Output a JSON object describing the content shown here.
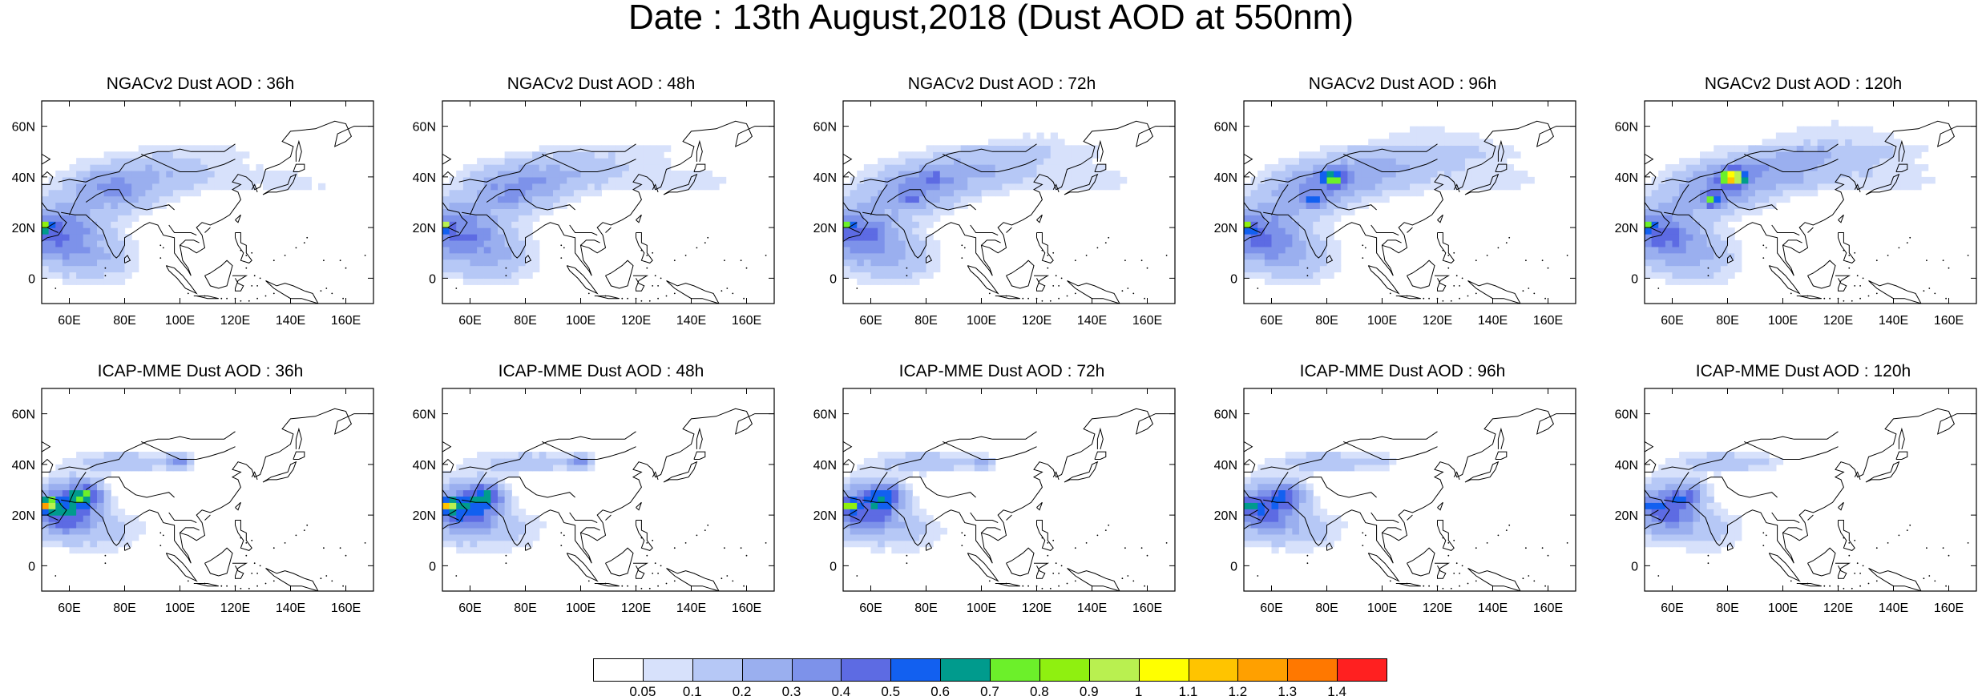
{
  "title": "Date : 13th August,2018 (Dust AOD at 550nm)",
  "colors": {
    "coast": "#000000",
    "frame": "#000000"
  },
  "map": {
    "lon_range": [
      50,
      170
    ],
    "lat_range": [
      -10,
      70
    ],
    "lon_ticks": [
      "60E",
      "80E",
      "100E",
      "120E",
      "140E",
      "160E"
    ],
    "lat_ticks": [
      "0",
      "20N",
      "40N",
      "60N"
    ]
  },
  "colorbar": {
    "colors": [
      "#ffffff",
      "#d7e1fb",
      "#b6c8f6",
      "#9aafef",
      "#7d92ea",
      "#5d6be3",
      "#1260f0",
      "#009b8d",
      "#6cf02a",
      "#8ff010",
      "#b9f050",
      "#ffff00",
      "#ffc400",
      "#ffa000",
      "#ff7800",
      "#ff2020"
    ],
    "labels": [
      "0.05",
      "0.1",
      "0.2",
      "0.3",
      "0.4",
      "0.5",
      "0.6",
      "0.7",
      "0.8",
      "0.9",
      "1",
      "1.1",
      "1.2",
      "1.3",
      "1.4"
    ]
  },
  "panels": [
    {
      "title": "NGACv2 Dust AOD : 36h",
      "model": "ngac",
      "hour": 36
    },
    {
      "title": "NGACv2 Dust AOD : 48h",
      "model": "ngac",
      "hour": 48
    },
    {
      "title": "NGACv2 Dust AOD : 72h",
      "model": "ngac",
      "hour": 72
    },
    {
      "title": "NGACv2 Dust AOD : 96h",
      "model": "ngac",
      "hour": 96
    },
    {
      "title": "NGACv2 Dust AOD : 120h",
      "model": "ngac",
      "hour": 120
    },
    {
      "title": "ICAP-MME Dust AOD : 36h",
      "model": "icap",
      "hour": 36
    },
    {
      "title": "ICAP-MME Dust AOD : 48h",
      "model": "icap",
      "hour": 48
    },
    {
      "title": "ICAP-MME Dust AOD : 72h",
      "model": "icap",
      "hour": 72
    },
    {
      "title": "ICAP-MME Dust AOD : 96h",
      "model": "icap",
      "hour": 96
    },
    {
      "title": "ICAP-MME Dust AOD : 120h",
      "model": "icap",
      "hour": 120
    }
  ]
}
